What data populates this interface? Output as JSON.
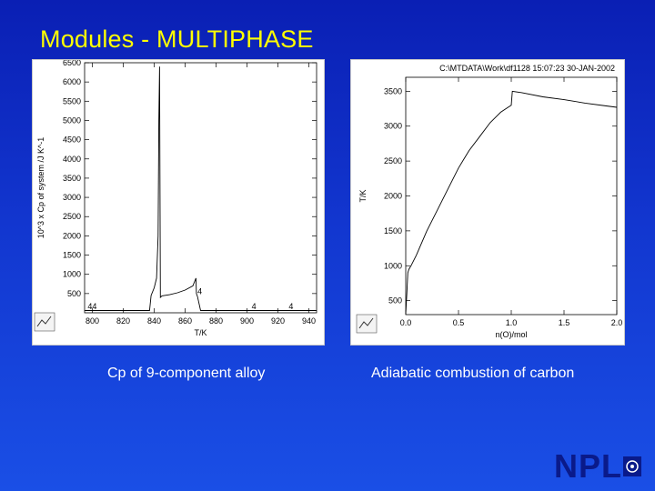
{
  "slide": {
    "title": "Modules - MULTIPHASE",
    "caption_left": "Cp of 9-component alloy",
    "caption_right": "Adiabatic combustion of carbon",
    "logo_text": "NPL"
  },
  "colors": {
    "background_top": "#0a1fb4",
    "background_bottom": "#1a4fe6",
    "title": "#ffff00",
    "caption": "#ffffff",
    "logo": "#0a1a8a"
  },
  "chart_data": [
    {
      "type": "line",
      "title": "",
      "xlabel": "T/K",
      "ylabel": "10^3 x Cp of system /J K^-1",
      "xlim": [
        795,
        945
      ],
      "ylim": [
        0,
        6500
      ],
      "xticks": [
        "800",
        "820",
        "840",
        "860",
        "880",
        "900",
        "920",
        "940"
      ],
      "yticks": [
        "500",
        "1000",
        "1500",
        "2000",
        "2500",
        "3000",
        "3500",
        "4000",
        "4500",
        "5000",
        "5500",
        "6000",
        "6500"
      ],
      "grid": false,
      "annotations": [
        {
          "text": "44",
          "x": 797,
          "y": 100
        },
        {
          "text": "4",
          "x": 868,
          "y": 480
        },
        {
          "text": "4",
          "x": 903,
          "y": 100
        },
        {
          "text": "4",
          "x": 927,
          "y": 100
        }
      ],
      "series": [
        {
          "x": [
            795,
            837,
            838,
            840,
            841.5,
            842.5,
            843,
            843.5,
            844,
            845,
            850,
            855,
            860,
            865,
            867,
            867.3,
            868,
            870,
            880,
            890,
            900,
            910,
            920,
            930,
            940,
            945
          ],
          "y": [
            60,
            60,
            450,
            650,
            900,
            2000,
            5000,
            6400,
            400,
            440,
            470,
            520,
            590,
            700,
            900,
            500,
            420,
            60,
            60,
            60,
            60,
            60,
            60,
            60,
            60,
            60
          ]
        }
      ]
    },
    {
      "type": "line",
      "title": "C:\\MTDATA\\Work\\df1128 15:07:23 30-JAN-2002",
      "xlabel": "n(O)/mol",
      "ylabel": "T/K",
      "xlim": [
        0,
        2.0
      ],
      "ylim": [
        300,
        3700
      ],
      "xticks": [
        "0.0",
        "0.5",
        "1.0",
        "1.5",
        "2.0"
      ],
      "yticks": [
        "500",
        "1000",
        "1500",
        "2000",
        "2500",
        "3000",
        "3500"
      ],
      "grid": false,
      "series": [
        {
          "x": [
            0.0,
            0.01,
            0.02,
            0.03,
            0.05,
            0.1,
            0.2,
            0.3,
            0.4,
            0.5,
            0.6,
            0.7,
            0.8,
            0.9,
            0.97,
            1.0,
            1.01,
            1.1,
            1.3,
            1.5,
            1.7,
            1.9,
            2.0
          ],
          "y": [
            310,
            600,
            900,
            950,
            1000,
            1150,
            1500,
            1800,
            2100,
            2400,
            2650,
            2850,
            3050,
            3200,
            3270,
            3300,
            3500,
            3480,
            3420,
            3380,
            3330,
            3290,
            3270
          ]
        }
      ]
    }
  ]
}
